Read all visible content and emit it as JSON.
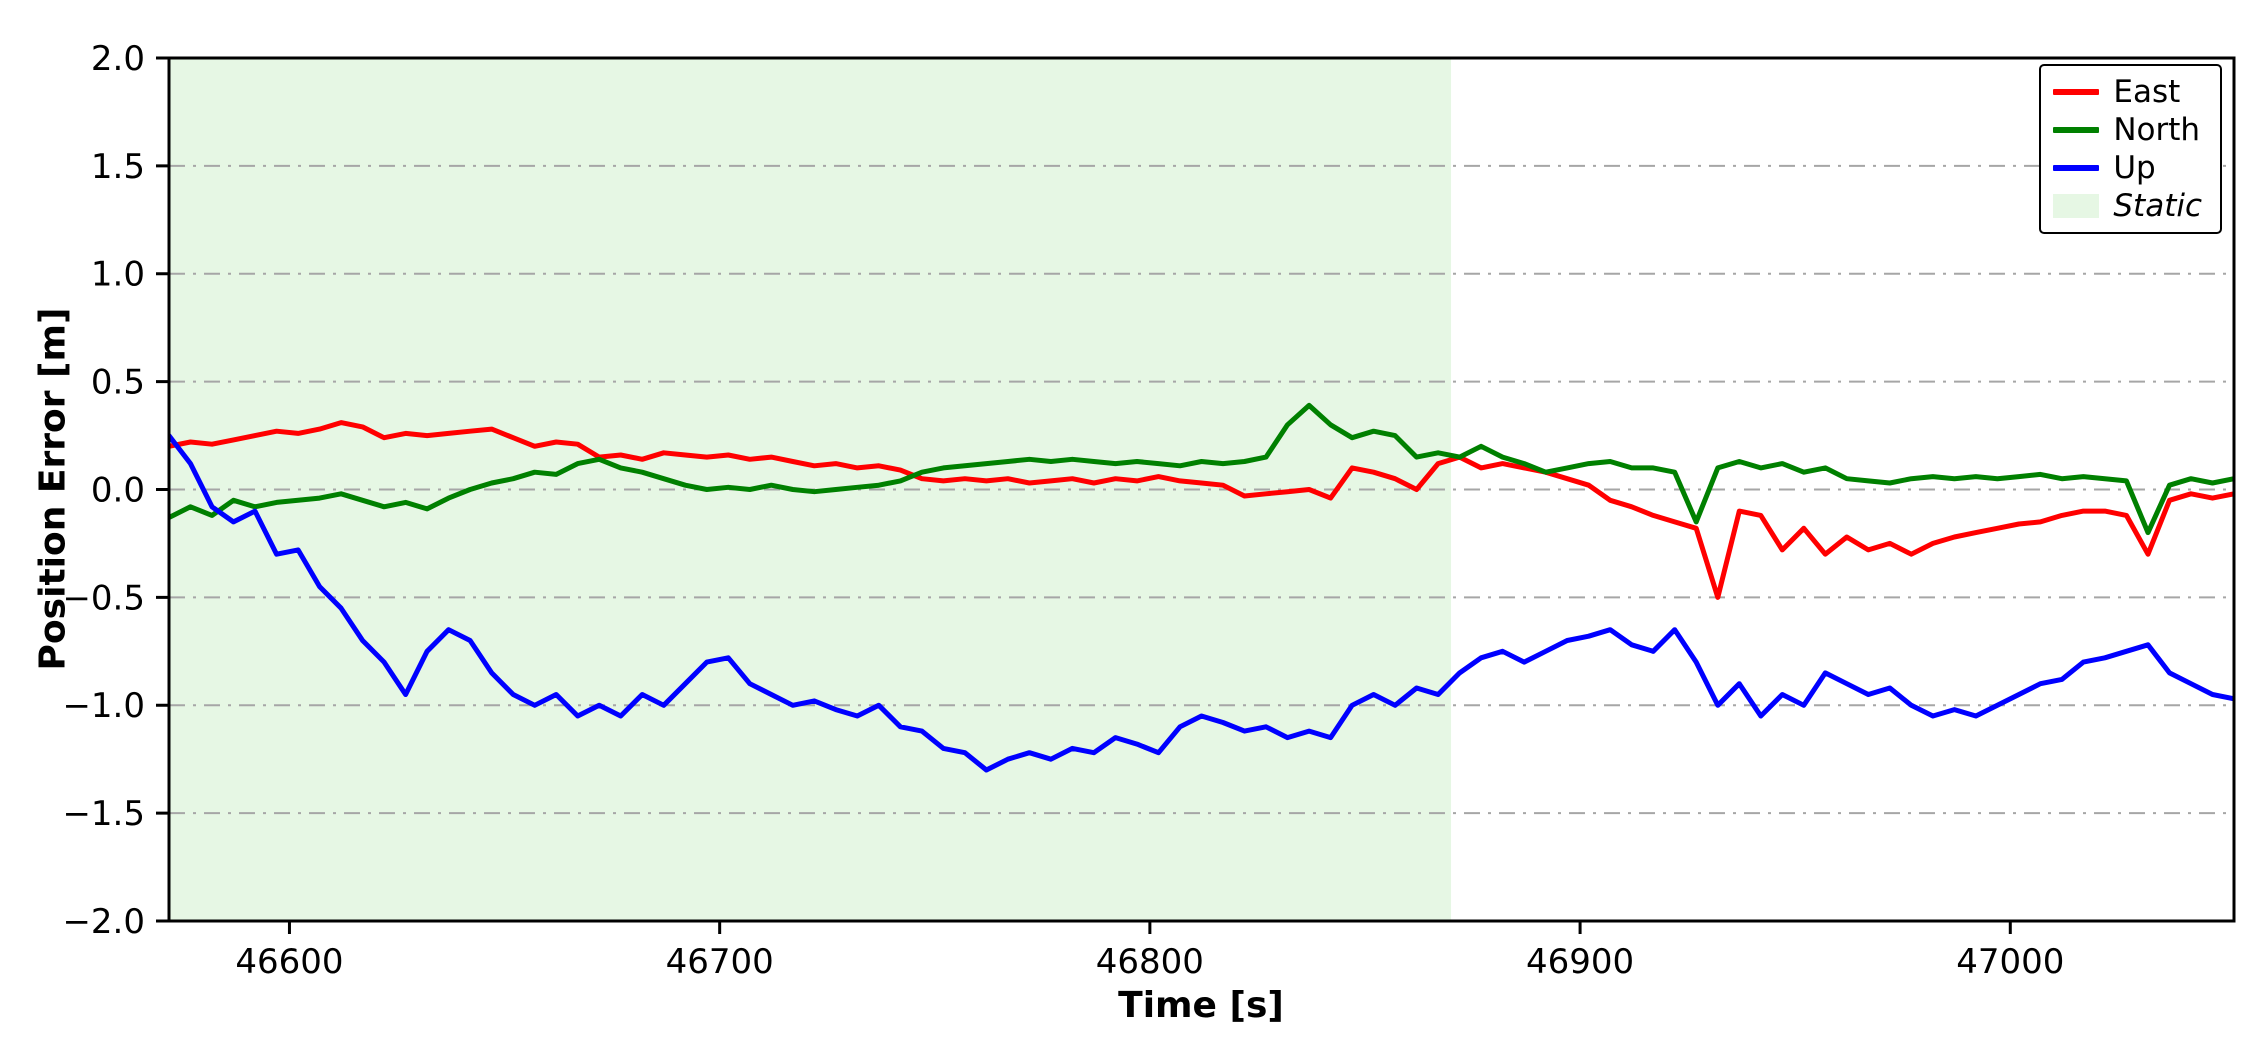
{
  "figure": {
    "background": "#ffffff",
    "xlabel": "Time [s]",
    "ylabel": "Position Error [m]"
  },
  "legend": {
    "position": "upper right",
    "items": [
      {
        "label": "East",
        "color": "#ff0000",
        "type": "line"
      },
      {
        "label": "North",
        "color": "#008000",
        "type": "line"
      },
      {
        "label": "Up",
        "color": "#0000ff",
        "type": "line"
      },
      {
        "label": "Static",
        "color": "#e6f7e4",
        "type": "patch",
        "italic": true
      }
    ]
  },
  "chart_data": {
    "type": "line",
    "title": "",
    "xlabel": "Time [s]",
    "ylabel": "Position Error [m]",
    "xlim": [
      46572,
      47052
    ],
    "ylim": [
      -2.0,
      2.0
    ],
    "x_ticks": [
      46600,
      46700,
      46800,
      46900,
      47000
    ],
    "x_tick_labels": [
      "46600",
      "46700",
      "46800",
      "46900",
      "47000"
    ],
    "y_ticks": [
      2.0,
      1.5,
      1.0,
      0.5,
      0.0,
      -0.5,
      -1.0,
      -1.5,
      -2.0
    ],
    "y_tick_labels": [
      "2.0",
      "1.5",
      "1.0",
      "0.5",
      "0.0",
      "−0.5",
      "−1.0",
      "−1.5",
      "−2.0"
    ],
    "grid": {
      "axis": "y",
      "style": "dash-dot",
      "color": "#a6a6a6"
    },
    "legend_position": "upper right",
    "static_region": {
      "label": "Static",
      "x_start": 46572,
      "x_end": 46870,
      "color": "#e6f7e4"
    },
    "x": [
      46572,
      46577,
      46582,
      46587,
      46592,
      46597,
      46602,
      46607,
      46612,
      46617,
      46622,
      46627,
      46632,
      46637,
      46642,
      46647,
      46652,
      46657,
      46662,
      46667,
      46672,
      46677,
      46682,
      46687,
      46692,
      46697,
      46702,
      46707,
      46712,
      46717,
      46722,
      46727,
      46732,
      46737,
      46742,
      46747,
      46752,
      46757,
      46762,
      46767,
      46772,
      46777,
      46782,
      46787,
      46792,
      46797,
      46802,
      46807,
      46812,
      46817,
      46822,
      46827,
      46832,
      46837,
      46842,
      46847,
      46852,
      46857,
      46862,
      46867,
      46872,
      46877,
      46882,
      46887,
      46892,
      46897,
      46902,
      46907,
      46912,
      46917,
      46922,
      46927,
      46932,
      46937,
      46942,
      46947,
      46952,
      46957,
      46962,
      46967,
      46972,
      46977,
      46982,
      46987,
      46992,
      46997,
      47002,
      47007,
      47012,
      47017,
      47022,
      47027,
      47032,
      47037,
      47042,
      47047,
      47052
    ],
    "series": [
      {
        "name": "East",
        "color": "#ff0000",
        "values": [
          0.2,
          0.22,
          0.21,
          0.23,
          0.25,
          0.27,
          0.26,
          0.28,
          0.31,
          0.29,
          0.24,
          0.26,
          0.25,
          0.26,
          0.27,
          0.28,
          0.24,
          0.2,
          0.22,
          0.21,
          0.15,
          0.16,
          0.14,
          0.17,
          0.16,
          0.15,
          0.16,
          0.14,
          0.15,
          0.13,
          0.11,
          0.12,
          0.1,
          0.11,
          0.09,
          0.05,
          0.04,
          0.05,
          0.04,
          0.05,
          0.03,
          0.04,
          0.05,
          0.03,
          0.05,
          0.04,
          0.06,
          0.04,
          0.03,
          0.02,
          -0.03,
          -0.02,
          -0.01,
          0.0,
          -0.04,
          0.1,
          0.08,
          0.05,
          0.0,
          0.12,
          0.15,
          0.1,
          0.12,
          0.1,
          0.08,
          0.05,
          0.02,
          -0.05,
          -0.08,
          -0.12,
          -0.15,
          -0.18,
          -0.5,
          -0.1,
          -0.12,
          -0.28,
          -0.18,
          -0.3,
          -0.22,
          -0.28,
          -0.25,
          -0.3,
          -0.25,
          -0.22,
          -0.2,
          -0.18,
          -0.16,
          -0.15,
          -0.12,
          -0.1,
          -0.1,
          -0.12,
          -0.3,
          -0.05,
          -0.02,
          -0.04,
          -0.02
        ]
      },
      {
        "name": "North",
        "color": "#008000",
        "values": [
          -0.13,
          -0.08,
          -0.12,
          -0.05,
          -0.08,
          -0.06,
          -0.05,
          -0.04,
          -0.02,
          -0.05,
          -0.08,
          -0.06,
          -0.09,
          -0.04,
          0.0,
          0.03,
          0.05,
          0.08,
          0.07,
          0.12,
          0.14,
          0.1,
          0.08,
          0.05,
          0.02,
          0.0,
          0.01,
          0.0,
          0.02,
          0.0,
          -0.01,
          0.0,
          0.01,
          0.02,
          0.04,
          0.08,
          0.1,
          0.11,
          0.12,
          0.13,
          0.14,
          0.13,
          0.14,
          0.13,
          0.12,
          0.13,
          0.12,
          0.11,
          0.13,
          0.12,
          0.13,
          0.15,
          0.3,
          0.39,
          0.3,
          0.24,
          0.27,
          0.25,
          0.15,
          0.17,
          0.15,
          0.2,
          0.15,
          0.12,
          0.08,
          0.1,
          0.12,
          0.13,
          0.1,
          0.1,
          0.08,
          -0.15,
          0.1,
          0.13,
          0.1,
          0.12,
          0.08,
          0.1,
          0.05,
          0.04,
          0.03,
          0.05,
          0.06,
          0.05,
          0.06,
          0.05,
          0.06,
          0.07,
          0.05,
          0.06,
          0.05,
          0.04,
          -0.2,
          0.02,
          0.05,
          0.03,
          0.05
        ]
      },
      {
        "name": "Up",
        "color": "#0000ff",
        "values": [
          0.25,
          0.12,
          -0.08,
          -0.15,
          -0.1,
          -0.3,
          -0.28,
          -0.45,
          -0.55,
          -0.7,
          -0.8,
          -0.95,
          -0.75,
          -0.65,
          -0.7,
          -0.85,
          -0.95,
          -1.0,
          -0.95,
          -1.05,
          -1.0,
          -1.05,
          -0.95,
          -1.0,
          -0.9,
          -0.8,
          -0.78,
          -0.9,
          -0.95,
          -1.0,
          -0.98,
          -1.02,
          -1.05,
          -1.0,
          -1.1,
          -1.12,
          -1.2,
          -1.22,
          -1.3,
          -1.25,
          -1.22,
          -1.25,
          -1.2,
          -1.22,
          -1.15,
          -1.18,
          -1.22,
          -1.1,
          -1.05,
          -1.08,
          -1.12,
          -1.1,
          -1.15,
          -1.12,
          -1.15,
          -1.0,
          -0.95,
          -1.0,
          -0.92,
          -0.95,
          -0.85,
          -0.78,
          -0.75,
          -0.8,
          -0.75,
          -0.7,
          -0.68,
          -0.65,
          -0.72,
          -0.75,
          -0.65,
          -0.8,
          -1.0,
          -0.9,
          -1.05,
          -0.95,
          -1.0,
          -0.85,
          -0.9,
          -0.95,
          -0.92,
          -1.0,
          -1.05,
          -1.02,
          -1.05,
          -1.0,
          -0.95,
          -0.9,
          -0.88,
          -0.8,
          -0.78,
          -0.75,
          -0.72,
          -0.85,
          -0.9,
          -0.95,
          -0.97
        ]
      }
    ]
  }
}
